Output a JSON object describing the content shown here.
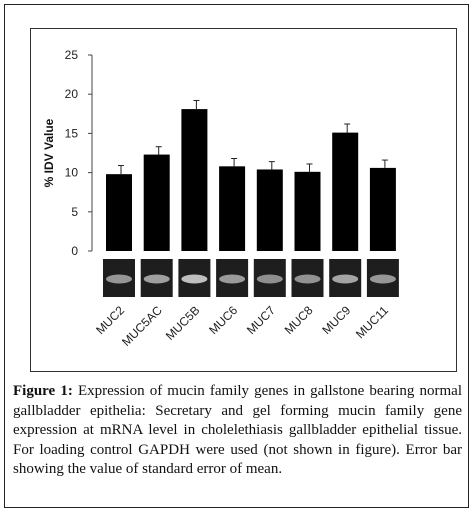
{
  "chart_data": {
    "type": "bar",
    "categories": [
      "MUC2",
      "MUC5AC",
      "MUC5B",
      "MUC6",
      "MUC7",
      "MUC8",
      "MUC9",
      "MUC11"
    ],
    "values": [
      9.8,
      12.3,
      18.1,
      10.8,
      10.4,
      10.1,
      15.1,
      10.6
    ],
    "errors": [
      1.1,
      1.0,
      1.1,
      1.0,
      1.0,
      1.0,
      1.1,
      1.0
    ],
    "ylabel": "% IDV Value",
    "xlabel": "",
    "title": "",
    "ylim": [
      0,
      25
    ],
    "yticks": [
      0,
      5,
      10,
      15,
      20,
      25
    ],
    "grid": false,
    "bar_color": "#000000",
    "gel_strip": true,
    "gel_band_intensity": [
      0.55,
      0.62,
      0.85,
      0.58,
      0.5,
      0.52,
      0.66,
      0.56
    ]
  },
  "caption": {
    "label": "Figure 1:",
    "text": "Expression of mucin family genes in gallstone bearing normal gallbladder epithelia: Secretary and gel forming mucin family gene expression at mRNA level in cholelethiasis gallbladder epithelial tissue. For loading control GAPDH were used (not shown in figure). Error bar showing the value of standard error of mean."
  }
}
